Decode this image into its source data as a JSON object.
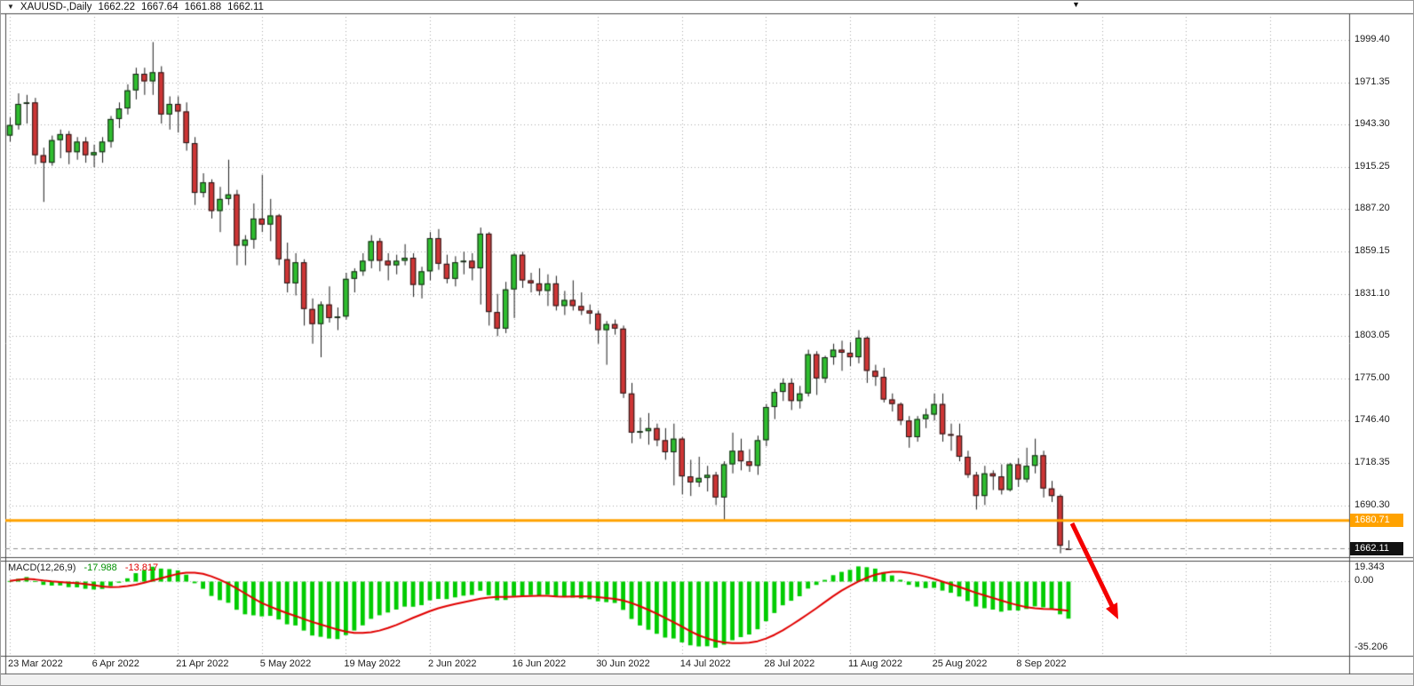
{
  "header": {
    "dropdown_icon": "▼",
    "symbol": "XAUUSD-,Daily",
    "open": "1662.22",
    "high": "1667.64",
    "low": "1661.88",
    "close": "1662.11"
  },
  "chart_data": {
    "type": "candlestick",
    "symbol": "XAUUSD",
    "timeframe": "Daily",
    "y_axis": {
      "ticks": [
        1999.4,
        1971.35,
        1943.3,
        1915.25,
        1887.2,
        1859.15,
        1831.1,
        1803.05,
        1775.0,
        1746.4,
        1718.35,
        1690.3
      ]
    },
    "x_axis": {
      "ticks": [
        {
          "label": "23 Mar 2022",
          "index": 0
        },
        {
          "label": "6 Apr 2022",
          "index": 10
        },
        {
          "label": "21 Apr 2022",
          "index": 20
        },
        {
          "label": "5 May 2022",
          "index": 30
        },
        {
          "label": "19 May 2022",
          "index": 40
        },
        {
          "label": "2 Jun 2022",
          "index": 50
        },
        {
          "label": "16 Jun 2022",
          "index": 60
        },
        {
          "label": "30 Jun 2022",
          "index": 70
        },
        {
          "label": "14 Jul 2022",
          "index": 80
        },
        {
          "label": "28 Jul 2022",
          "index": 90
        },
        {
          "label": "11 Aug 2022",
          "index": 100
        },
        {
          "label": "25 Aug 2022",
          "index": 110
        },
        {
          "label": "8 Sep 2022",
          "index": 120
        }
      ]
    },
    "ohlc": [
      [
        1936,
        1948,
        1932,
        1943
      ],
      [
        1943,
        1964,
        1940,
        1957
      ],
      [
        1957,
        1963,
        1944,
        1958
      ],
      [
        1958,
        1961,
        1917,
        1923
      ],
      [
        1923,
        1928,
        1892,
        1918
      ],
      [
        1918,
        1936,
        1916,
        1933
      ],
      [
        1933,
        1940,
        1921,
        1937
      ],
      [
        1937,
        1939,
        1917,
        1925
      ],
      [
        1925,
        1935,
        1920,
        1932
      ],
      [
        1932,
        1935,
        1918,
        1923
      ],
      [
        1923,
        1930,
        1915,
        1925
      ],
      [
        1925,
        1935,
        1918,
        1932
      ],
      [
        1932,
        1949,
        1928,
        1947
      ],
      [
        1947,
        1958,
        1941,
        1954
      ],
      [
        1954,
        1970,
        1950,
        1966
      ],
      [
        1966,
        1981,
        1960,
        1977
      ],
      [
        1977,
        1981,
        1963,
        1972
      ],
      [
        1972,
        1998,
        1963,
        1978
      ],
      [
        1978,
        1982,
        1944,
        1950
      ],
      [
        1950,
        1962,
        1940,
        1957
      ],
      [
        1957,
        1962,
        1938,
        1952
      ],
      [
        1952,
        1958,
        1926,
        1931
      ],
      [
        1931,
        1935,
        1890,
        1898
      ],
      [
        1898,
        1911,
        1895,
        1905
      ],
      [
        1905,
        1907,
        1881,
        1886
      ],
      [
        1886,
        1902,
        1872,
        1894
      ],
      [
        1894,
        1920,
        1890,
        1897
      ],
      [
        1897,
        1900,
        1850,
        1863
      ],
      [
        1863,
        1870,
        1850,
        1867
      ],
      [
        1867,
        1891,
        1861,
        1881
      ],
      [
        1881,
        1910,
        1872,
        1877
      ],
      [
        1877,
        1894,
        1866,
        1883
      ],
      [
        1883,
        1884,
        1850,
        1854
      ],
      [
        1854,
        1865,
        1832,
        1838
      ],
      [
        1838,
        1858,
        1830,
        1852
      ],
      [
        1852,
        1854,
        1810,
        1821
      ],
      [
        1821,
        1828,
        1798,
        1811
      ],
      [
        1811,
        1826,
        1789,
        1824
      ],
      [
        1824,
        1836,
        1812,
        1815
      ],
      [
        1815,
        1822,
        1807,
        1816
      ],
      [
        1816,
        1845,
        1814,
        1841
      ],
      [
        1841,
        1848,
        1832,
        1846
      ],
      [
        1846,
        1858,
        1843,
        1853
      ],
      [
        1853,
        1870,
        1848,
        1866
      ],
      [
        1866,
        1868,
        1846,
        1853
      ],
      [
        1853,
        1858,
        1840,
        1850
      ],
      [
        1850,
        1857,
        1844,
        1853
      ],
      [
        1853,
        1864,
        1850,
        1855
      ],
      [
        1855,
        1858,
        1829,
        1837
      ],
      [
        1837,
        1849,
        1828,
        1846
      ],
      [
        1846,
        1872,
        1840,
        1868
      ],
      [
        1868,
        1874,
        1847,
        1851
      ],
      [
        1851,
        1857,
        1838,
        1841
      ],
      [
        1841,
        1856,
        1836,
        1852
      ],
      [
        1852,
        1859,
        1844,
        1853
      ],
      [
        1853,
        1858,
        1840,
        1848
      ],
      [
        1848,
        1875,
        1824,
        1871
      ],
      [
        1871,
        1872,
        1810,
        1819
      ],
      [
        1819,
        1831,
        1803,
        1808
      ],
      [
        1808,
        1839,
        1805,
        1834
      ],
      [
        1834,
        1858,
        1815,
        1857
      ],
      [
        1857,
        1859,
        1835,
        1840
      ],
      [
        1840,
        1845,
        1832,
        1838
      ],
      [
        1838,
        1848,
        1830,
        1833
      ],
      [
        1833,
        1844,
        1823,
        1838
      ],
      [
        1838,
        1843,
        1820,
        1823
      ],
      [
        1823,
        1833,
        1817,
        1827
      ],
      [
        1827,
        1840,
        1820,
        1823
      ],
      [
        1823,
        1832,
        1817,
        1820
      ],
      [
        1820,
        1824,
        1811,
        1818
      ],
      [
        1818,
        1820,
        1798,
        1807
      ],
      [
        1807,
        1813,
        1784,
        1811
      ],
      [
        1811,
        1814,
        1804,
        1808
      ],
      [
        1808,
        1810,
        1762,
        1765
      ],
      [
        1765,
        1772,
        1732,
        1739
      ],
      [
        1739,
        1749,
        1735,
        1740
      ],
      [
        1740,
        1752,
        1731,
        1742
      ],
      [
        1742,
        1745,
        1730,
        1734
      ],
      [
        1734,
        1742,
        1721,
        1726
      ],
      [
        1726,
        1745,
        1704,
        1735
      ],
      [
        1735,
        1736,
        1698,
        1710
      ],
      [
        1710,
        1721,
        1697,
        1706
      ],
      [
        1706,
        1723,
        1703,
        1709
      ],
      [
        1709,
        1717,
        1700,
        1711
      ],
      [
        1711,
        1713,
        1691,
        1696
      ],
      [
        1696,
        1720,
        1680.7,
        1718
      ],
      [
        1718,
        1739,
        1712,
        1727
      ],
      [
        1727,
        1735,
        1714,
        1720
      ],
      [
        1720,
        1728,
        1713,
        1717
      ],
      [
        1717,
        1737,
        1711,
        1734
      ],
      [
        1734,
        1758,
        1730,
        1756
      ],
      [
        1756,
        1768,
        1748,
        1766
      ],
      [
        1766,
        1775,
        1760,
        1772
      ],
      [
        1772,
        1775,
        1754,
        1760
      ],
      [
        1760,
        1770,
        1755,
        1765
      ],
      [
        1765,
        1794,
        1763,
        1791
      ],
      [
        1791,
        1793,
        1764,
        1775
      ],
      [
        1775,
        1790,
        1772,
        1789
      ],
      [
        1789,
        1798,
        1784,
        1794
      ],
      [
        1794,
        1800,
        1780,
        1792
      ],
      [
        1792,
        1799,
        1783,
        1789
      ],
      [
        1789,
        1807,
        1785,
        1802
      ],
      [
        1802,
        1803,
        1772,
        1780
      ],
      [
        1780,
        1784,
        1770,
        1776
      ],
      [
        1776,
        1782,
        1759,
        1761
      ],
      [
        1761,
        1765,
        1753,
        1758
      ],
      [
        1758,
        1759,
        1744,
        1747
      ],
      [
        1747,
        1750,
        1729,
        1736
      ],
      [
        1736,
        1750,
        1733,
        1748
      ],
      [
        1748,
        1755,
        1742,
        1751
      ],
      [
        1751,
        1765,
        1747,
        1758
      ],
      [
        1758,
        1765,
        1733,
        1738
      ],
      [
        1738,
        1745,
        1727,
        1737
      ],
      [
        1737,
        1745,
        1720,
        1723
      ],
      [
        1723,
        1727,
        1709,
        1711
      ],
      [
        1711,
        1713,
        1688,
        1697
      ],
      [
        1697,
        1717,
        1691,
        1712
      ],
      [
        1712,
        1714,
        1701,
        1710
      ],
      [
        1710,
        1718,
        1698,
        1701
      ],
      [
        1701,
        1719,
        1700,
        1718
      ],
      [
        1718,
        1722,
        1703,
        1708
      ],
      [
        1708,
        1729,
        1706,
        1717
      ],
      [
        1717,
        1735,
        1712,
        1724
      ],
      [
        1724,
        1727,
        1696,
        1702
      ],
      [
        1702,
        1707,
        1693,
        1697
      ],
      [
        1697,
        1698,
        1659,
        1664
      ],
      [
        1662.2,
        1667.6,
        1661.9,
        1662.1
      ]
    ],
    "levels": {
      "resistance_line": {
        "value": 1680.71,
        "label": "1680.71",
        "color": "#FFA200"
      },
      "current_price": {
        "value": 1662.11,
        "label": "1662.11",
        "color": "#111111"
      }
    },
    "indicator": {
      "name": "MACD(12,26,9)",
      "fast": 12,
      "slow": 26,
      "signal": 9,
      "main_value": "-17.988",
      "signal_value": "-13.817",
      "axis_ticks": [
        "19.343",
        "0.00",
        "-35.206"
      ],
      "axis_values": [
        19.343,
        0,
        -35.206
      ],
      "histogram_color": "#00CC00",
      "signal_color": "#E10000"
    },
    "annotation": {
      "type": "arrow-down-right",
      "color": "#F40000"
    },
    "colors": {
      "bull_body": "#2FBE2F",
      "bear_body": "#CE3535",
      "outline": "#1b1b1b",
      "grid": "#ababab",
      "border": "#4a4a4a",
      "bid_line": "#8f8f8f"
    }
  }
}
